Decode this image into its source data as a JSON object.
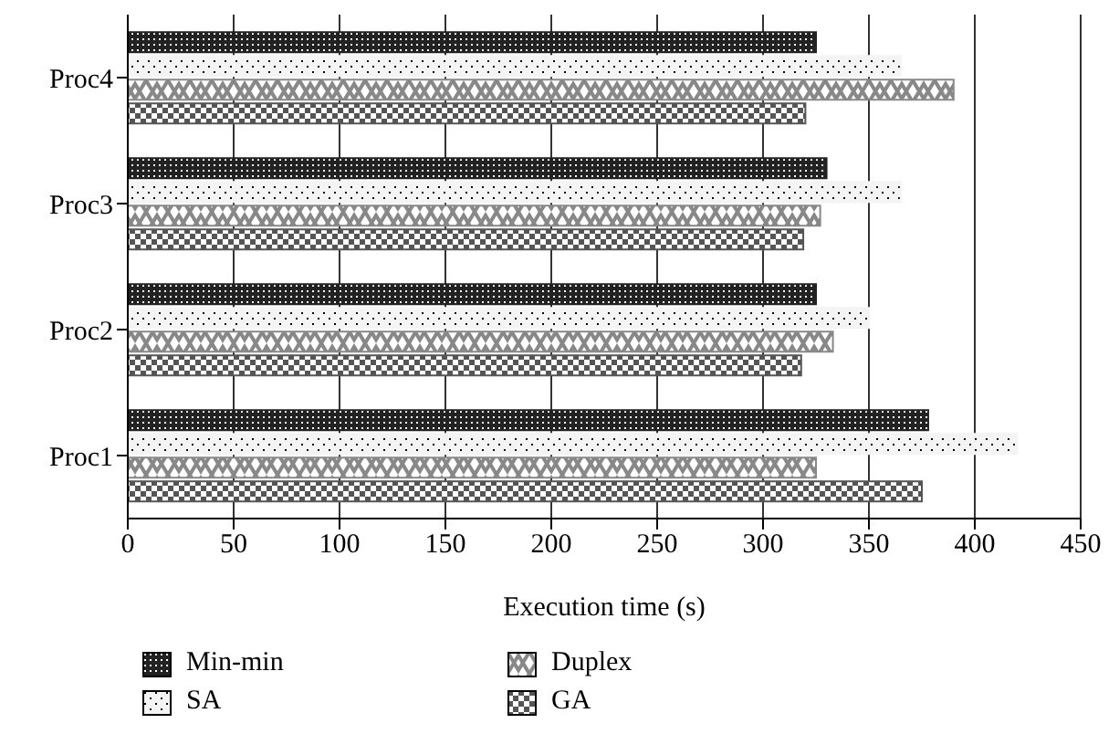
{
  "chart_data": {
    "type": "bar",
    "orientation": "horizontal",
    "xlabel": "Execution time (s)",
    "categories": [
      "Proc4",
      "Proc3",
      "Proc2",
      "Proc1"
    ],
    "series": [
      {
        "name": "Min-min",
        "color": "#222222",
        "values": [
          325,
          330,
          325,
          378
        ]
      },
      {
        "name": "SA",
        "color": "#f4f4f4",
        "values": [
          365,
          365,
          350,
          420
        ]
      },
      {
        "name": "Duplex",
        "color": "#888888",
        "values": [
          390,
          327,
          333,
          325
        ]
      },
      {
        "name": "GA",
        "color": "#555555",
        "values": [
          320,
          319,
          318,
          375
        ]
      }
    ],
    "xlim": [
      0,
      450
    ],
    "xticks": [
      0,
      50,
      100,
      150,
      200,
      250,
      300,
      350,
      400,
      450
    ],
    "grid": "x",
    "legend": "bottom"
  }
}
